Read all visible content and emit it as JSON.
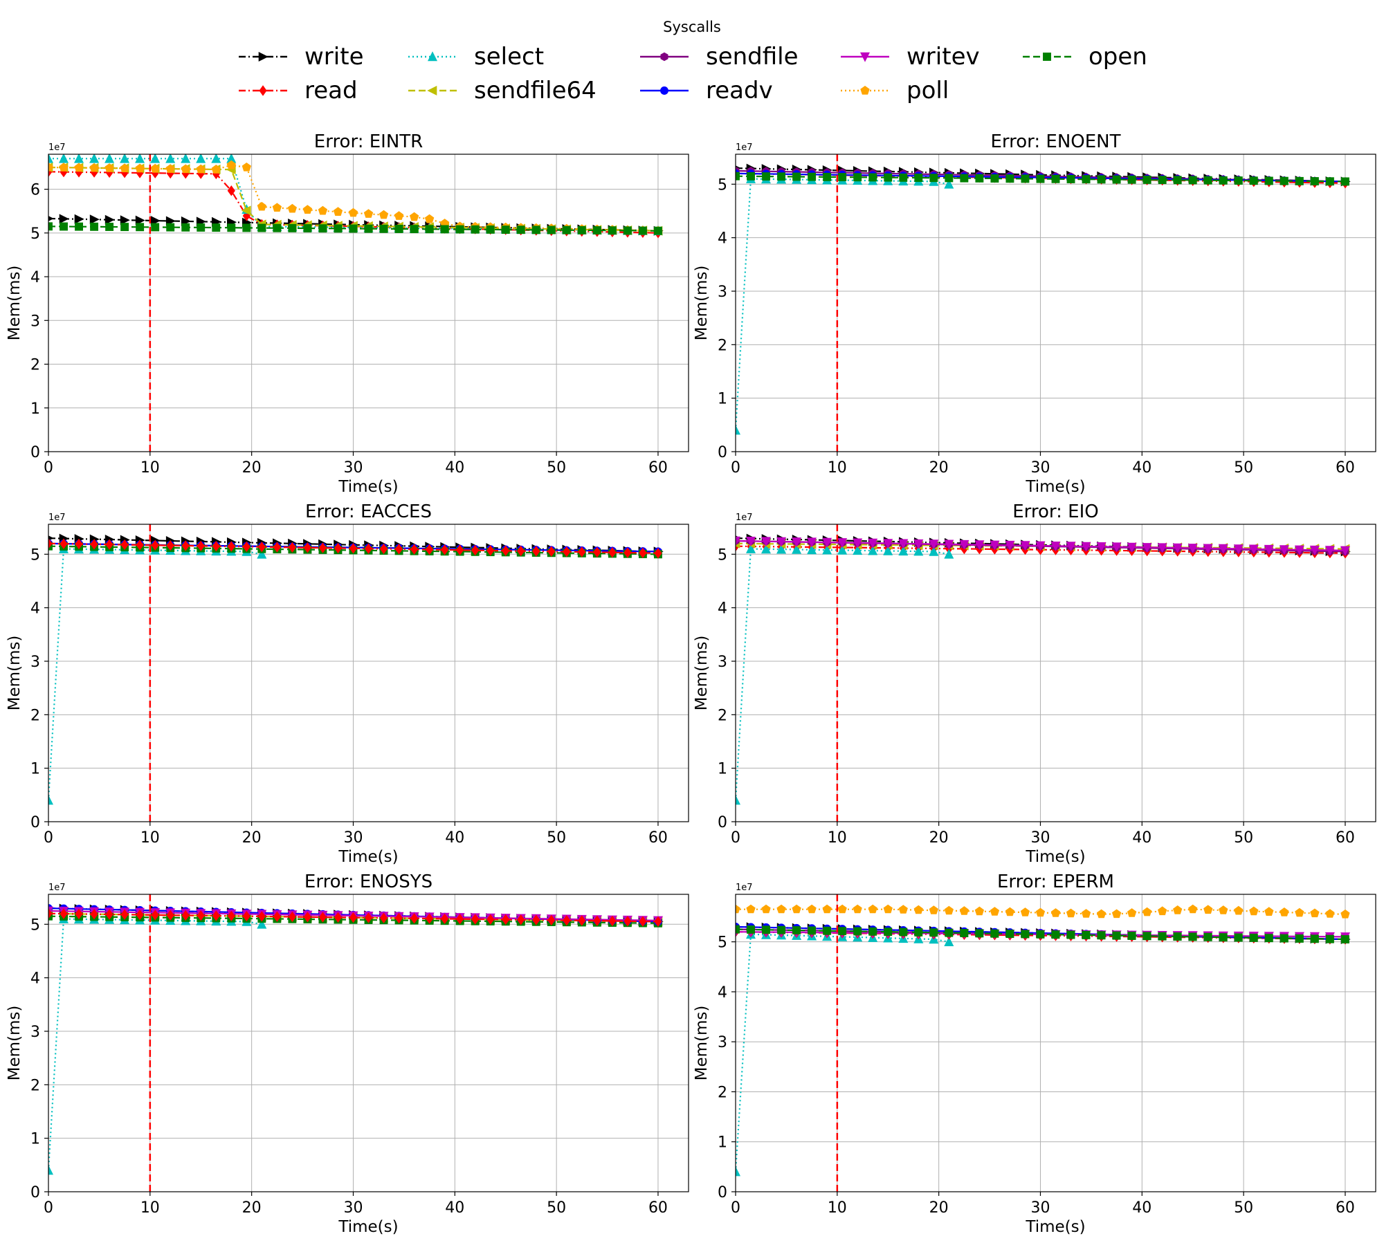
{
  "legend": {
    "title": "Syscalls",
    "entries": [
      {
        "name": "write",
        "color": "#000000",
        "linestyle": "dashdot",
        "marker": "triangle-right"
      },
      {
        "name": "read",
        "color": "#ff0000",
        "linestyle": "dashdot",
        "marker": "diamond"
      },
      {
        "name": "select",
        "color": "#00bfbf",
        "linestyle": "dotted",
        "marker": "triangle-up"
      },
      {
        "name": "sendfile64",
        "color": "#bfbf00",
        "linestyle": "dashed",
        "marker": "triangle-left"
      },
      {
        "name": "sendfile",
        "color": "#800080",
        "linestyle": "solid",
        "marker": "hexagon"
      },
      {
        "name": "readv",
        "color": "#0000ff",
        "linestyle": "solid",
        "marker": "circle"
      },
      {
        "name": "writev",
        "color": "#bf00bf",
        "linestyle": "solid",
        "marker": "triangle-down"
      },
      {
        "name": "poll",
        "color": "#ffa500",
        "linestyle": "dotted",
        "marker": "pentagon"
      },
      {
        "name": "open",
        "color": "#008000",
        "linestyle": "dashed",
        "marker": "square"
      }
    ]
  },
  "chart_data": [
    {
      "type": "line",
      "title": "Error: EINTR",
      "xlabel": "Time(s)",
      "ylabel": "Mem(ms)",
      "offset_text": "1e7",
      "xlim": [
        0,
        63
      ],
      "ylim": [
        0,
        68000000
      ],
      "xticks": [
        0,
        10,
        20,
        30,
        40,
        50,
        60
      ],
      "yticks": [
        0,
        1,
        2,
        3,
        4,
        5,
        6
      ],
      "grid": true,
      "vline": {
        "x": 10,
        "color": "#ff0000",
        "style": "dashed"
      },
      "x": [
        0,
        60
      ],
      "series": [
        {
          "name": "write",
          "values": [
            53300000.0,
            50500000.0
          ]
        },
        {
          "name": "read",
          "values": [
            64000000.0,
            63500000.0,
            52000000.0,
            50000000.0
          ],
          "x": [
            0,
            17,
            20,
            60
          ]
        },
        {
          "name": "select",
          "values": [
            67000000.0,
            67000000.0,
            51500000.0,
            50500000.0
          ],
          "x": [
            0,
            18,
            20,
            60
          ]
        },
        {
          "name": "sendfile64",
          "values": [
            65000000.0,
            64500000.0,
            52000000.0,
            50500000.0
          ],
          "x": [
            0,
            18,
            20,
            60
          ]
        },
        {
          "name": "poll",
          "values": [
            65000000.0,
            64500000.0,
            65500000.0,
            65000000.0,
            56000000.0,
            53500000.0,
            51500000.0,
            50500000.0
          ],
          "x": [
            0,
            17,
            18,
            19.5,
            21,
            37,
            40,
            60
          ]
        },
        {
          "name": "open",
          "values": [
            51500000.0,
            50500000.0
          ]
        }
      ]
    },
    {
      "type": "line",
      "title": "Error: ENOENT",
      "xlabel": "Time(s)",
      "ylabel": "Mem(ms)",
      "offset_text": "1e7",
      "xlim": [
        0,
        63
      ],
      "ylim": [
        0,
        55600000
      ],
      "xticks": [
        0,
        10,
        20,
        30,
        40,
        50,
        60
      ],
      "yticks": [
        0,
        1,
        2,
        3,
        4,
        5
      ],
      "grid": true,
      "vline": {
        "x": 10,
        "color": "#ff0000",
        "style": "dashed"
      },
      "x": [
        0,
        60
      ],
      "series": [
        {
          "name": "write",
          "values": [
            53000000.0,
            50500000.0
          ]
        },
        {
          "name": "read",
          "values": [
            52000000.0,
            50200000.0
          ]
        },
        {
          "name": "select",
          "values": [
            4000000.0,
            51000000.0,
            50500000.0,
            50000000.0
          ],
          "x": [
            0,
            1.5,
            19.5,
            21
          ]
        },
        {
          "name": "sendfile",
          "values": [
            52500000.0,
            50500000.0
          ]
        },
        {
          "name": "readv",
          "values": [
            52000000.0,
            50500000.0
          ]
        },
        {
          "name": "open",
          "values": [
            51500000.0,
            50500000.0
          ]
        }
      ]
    },
    {
      "type": "line",
      "title": "Error: EACCES",
      "xlabel": "Time(s)",
      "ylabel": "Mem(ms)",
      "offset_text": "1e7",
      "xlim": [
        0,
        63
      ],
      "ylim": [
        0,
        55600000
      ],
      "xticks": [
        0,
        10,
        20,
        30,
        40,
        50,
        60
      ],
      "yticks": [
        0,
        1,
        2,
        3,
        4,
        5
      ],
      "grid": true,
      "vline": {
        "x": 10,
        "color": "#ff0000",
        "style": "dashed"
      },
      "x": [
        0,
        60
      ],
      "series": [
        {
          "name": "write",
          "values": [
            53000000.0,
            50500000.0
          ]
        },
        {
          "name": "select",
          "values": [
            4000000.0,
            51000000.0,
            50500000.0,
            50000000.0
          ],
          "x": [
            0,
            1.5,
            19.5,
            21
          ]
        },
        {
          "name": "sendfile",
          "values": [
            52000000.0,
            50500000.0
          ]
        },
        {
          "name": "readv",
          "values": [
            52000000.0,
            50500000.0
          ]
        },
        {
          "name": "open",
          "values": [
            51500000.0,
            50000000.0
          ]
        },
        {
          "name": "read",
          "values": [
            52000000.0,
            50200000.0
          ]
        }
      ]
    },
    {
      "type": "line",
      "title": "Error: EIO",
      "xlabel": "Time(s)",
      "ylabel": "Mem(ms)",
      "offset_text": "1e7",
      "xlim": [
        0,
        63
      ],
      "ylim": [
        0,
        55600000
      ],
      "xticks": [
        0,
        10,
        20,
        30,
        40,
        50,
        60
      ],
      "yticks": [
        0,
        1,
        2,
        3,
        4,
        5
      ],
      "grid": true,
      "vline": {
        "x": 10,
        "color": "#ff0000",
        "style": "dashed"
      },
      "x": [
        0,
        60
      ],
      "series": [
        {
          "name": "write",
          "values": [
            53000000.0,
            50500000.0
          ]
        },
        {
          "name": "read",
          "values": [
            51500000.0,
            50200000.0
          ]
        },
        {
          "name": "select",
          "values": [
            4000000.0,
            51000000.0,
            50500000.0,
            50000000.0
          ],
          "x": [
            0,
            1.5,
            19.5,
            21
          ]
        },
        {
          "name": "sendfile64",
          "values": [
            52000000.0,
            51000000.0
          ]
        },
        {
          "name": "sendfile",
          "values": [
            52500000.0,
            50500000.0
          ]
        },
        {
          "name": "writev",
          "values": [
            52500000.0,
            50700000.0
          ]
        }
      ]
    },
    {
      "type": "line",
      "title": "Error: ENOSYS",
      "xlabel": "Time(s)",
      "ylabel": "Mem(ms)",
      "offset_text": "1e7",
      "xlim": [
        0,
        63
      ],
      "ylim": [
        0,
        55600000
      ],
      "xticks": [
        0,
        10,
        20,
        30,
        40,
        50,
        60
      ],
      "yticks": [
        0,
        1,
        2,
        3,
        4,
        5
      ],
      "grid": true,
      "vline": {
        "x": 10,
        "color": "#ff0000",
        "style": "dashed"
      },
      "x": [
        0,
        60
      ],
      "series": [
        {
          "name": "write",
          "values": [
            53000000.0,
            50500000.0
          ]
        },
        {
          "name": "select",
          "values": [
            4000000.0,
            51000000.0,
            50500000.0,
            50000000.0
          ],
          "x": [
            0,
            1.5,
            19.5,
            21
          ]
        },
        {
          "name": "sendfile64",
          "values": [
            52000000.0,
            50500000.0
          ]
        },
        {
          "name": "open",
          "values": [
            51500000.0,
            50200000.0
          ]
        },
        {
          "name": "readv",
          "values": [
            53000000.0,
            50500000.0
          ]
        },
        {
          "name": "writev",
          "values": [
            52500000.0,
            50700000.0
          ]
        },
        {
          "name": "read",
          "values": [
            52000000.0,
            50500000.0
          ]
        }
      ]
    },
    {
      "type": "line",
      "title": "Error: EPERM",
      "xlabel": "Time(s)",
      "ylabel": "Mem(ms)",
      "offset_text": "1e7",
      "xlim": [
        0,
        63
      ],
      "ylim": [
        0,
        59500000
      ],
      "xticks": [
        0,
        10,
        20,
        30,
        40,
        50,
        60
      ],
      "yticks": [
        0,
        1,
        2,
        3,
        4,
        5
      ],
      "grid": true,
      "vline": {
        "x": 10,
        "color": "#ff0000",
        "style": "dashed"
      },
      "x": [
        0,
        60
      ],
      "series": [
        {
          "name": "poll",
          "values": [
            56500000.0,
            56500000.0,
            55500000.0,
            56500000.0,
            55500000.0
          ],
          "x": [
            0,
            15,
            37,
            45,
            60
          ]
        },
        {
          "name": "write",
          "values": [
            53000000.0,
            50500000.0
          ]
        },
        {
          "name": "select",
          "values": [
            4000000.0,
            51500000.0,
            50500000.0,
            50000000.0
          ],
          "x": [
            0,
            1.5,
            19.5,
            21
          ]
        },
        {
          "name": "read",
          "values": [
            52000000.0,
            50500000.0
          ]
        },
        {
          "name": "sendfile",
          "values": [
            52500000.0,
            50500000.0
          ]
        },
        {
          "name": "readv",
          "values": [
            53000000.0,
            50500000.0
          ]
        },
        {
          "name": "writev",
          "values": [
            52000000.0,
            51000000.0
          ]
        },
        {
          "name": "open",
          "values": [
            52500000.0,
            50500000.0
          ]
        }
      ]
    }
  ]
}
